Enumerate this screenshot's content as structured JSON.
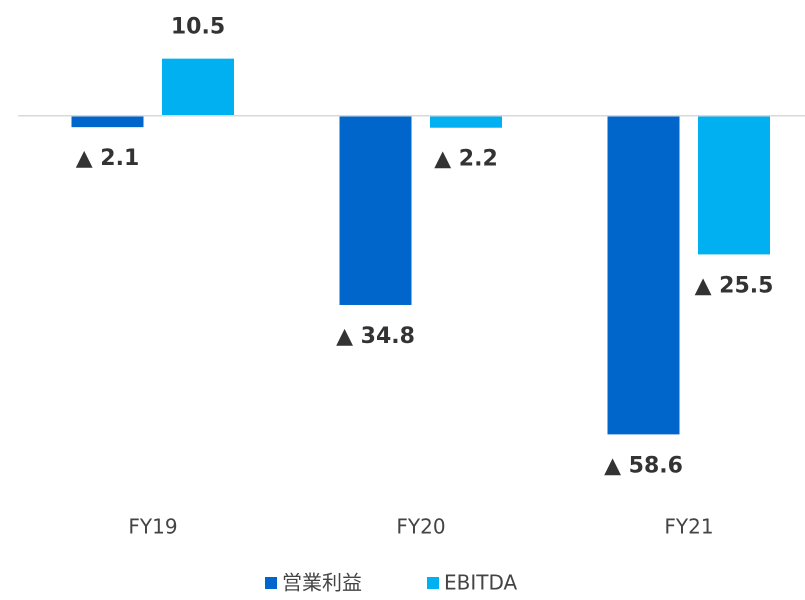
{
  "chart_data": {
    "type": "bar",
    "categories": [
      "FY19",
      "FY20",
      "FY21"
    ],
    "series": [
      {
        "name": "営業利益",
        "color": "#0066cc",
        "values": [
          -2.1,
          -34.8,
          -58.6
        ],
        "value_labels": [
          "▲ 2.1",
          "▲ 34.8",
          "▲ 58.6"
        ]
      },
      {
        "name": "EBITDA",
        "color": "#00b0f0",
        "values": [
          10.5,
          -2.2,
          -25.5
        ],
        "value_labels": [
          "10.5",
          "▲ 2.2",
          "▲ 25.5"
        ]
      }
    ],
    "ylim": [
      -60,
      20
    ],
    "grid": false,
    "legend": "bottom"
  }
}
